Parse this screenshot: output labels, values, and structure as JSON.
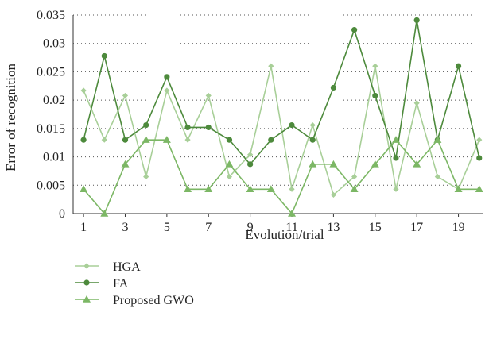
{
  "chart_data": {
    "type": "line",
    "title": "",
    "xlabel": "Evolution/trial",
    "ylabel": "Error of recognition",
    "x": [
      1,
      2,
      3,
      4,
      5,
      6,
      7,
      8,
      9,
      10,
      11,
      12,
      13,
      14,
      15,
      16,
      17,
      18,
      19,
      20
    ],
    "xticks": [
      1,
      3,
      5,
      7,
      9,
      11,
      13,
      15,
      17,
      19
    ],
    "xticklabels": [
      "1",
      "3",
      "5",
      "7",
      "9",
      "11",
      "13",
      "15",
      "17",
      "19"
    ],
    "xlim": [
      0.5,
      20.2
    ],
    "ylim": [
      0,
      0.035
    ],
    "yticks": [
      0,
      0.005,
      0.01,
      0.015,
      0.02,
      0.025,
      0.03,
      0.035
    ],
    "yticklabels": [
      "0",
      "0.005",
      "0.01",
      "0.015",
      "0.02",
      "0.025",
      "0.03",
      "0.035"
    ],
    "grid": "horizontal-dotted",
    "legend_position": "below",
    "series": [
      {
        "name": "HGA",
        "marker": "diamond",
        "color": "#a8cf98",
        "values": [
          0.0217,
          0.013,
          0.0208,
          0.0065,
          0.0217,
          0.013,
          0.0208,
          0.0065,
          0.0104,
          0.026,
          0.0043,
          0.0156,
          0.0033,
          0.0065,
          0.026,
          0.0043,
          0.0195,
          0.0065,
          0.0043,
          0.013
        ]
      },
      {
        "name": "FA",
        "marker": "circle",
        "color": "#4d8a3c",
        "values": [
          0.013,
          0.0278,
          0.013,
          0.0156,
          0.0241,
          0.0152,
          0.0152,
          0.013,
          0.0087,
          0.013,
          0.0156,
          0.013,
          0.0222,
          0.0324,
          0.0208,
          0.0098,
          0.0341,
          0.013,
          0.026,
          0.0098
        ]
      },
      {
        "name": "Proposed GWO",
        "marker": "triangle",
        "color": "#7cb765",
        "values": [
          0.0043,
          0.0,
          0.0087,
          0.013,
          0.013,
          0.0043,
          0.0043,
          0.0087,
          0.0043,
          0.0043,
          0.0,
          0.0087,
          0.0087,
          0.0043,
          0.0087,
          0.013,
          0.0087,
          0.013,
          0.0043,
          0.0043
        ]
      }
    ]
  }
}
